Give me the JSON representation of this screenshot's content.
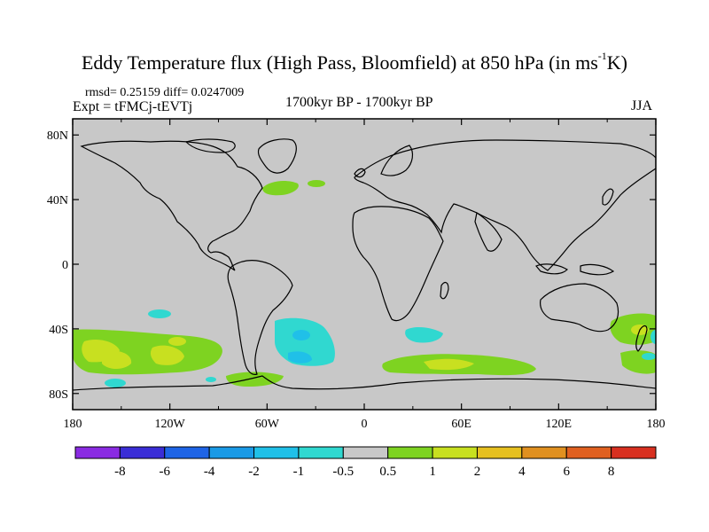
{
  "title": {
    "main": "Eddy Temperature flux (High Pass, Bloomfield) at 850 hPa (in ms",
    "sup": "-1",
    "end": "K)"
  },
  "stats": "rmsd= 0.25159 diff= 0.0247009",
  "experiment": "Expt = tFMCj-tEVTj",
  "period": "1700kyr BP - 1700kyr BP",
  "season": "JJA",
  "axes": {
    "lat_labels": [
      "80N",
      "40N",
      "0",
      "40S",
      "80S"
    ],
    "lat_values": [
      80,
      40,
      0,
      -40,
      -80
    ],
    "lon_labels": [
      "180",
      "120W",
      "60W",
      "0",
      "60E",
      "120E",
      "180"
    ],
    "lon_values": [
      -180,
      -120,
      -60,
      0,
      60,
      120,
      180
    ],
    "lat_range": [
      -90,
      90
    ],
    "lon_range": [
      -180,
      180
    ]
  },
  "colorbar": {
    "labels": [
      "-8",
      "-6",
      "-4",
      "-2",
      "-1",
      "-0.5",
      "0.5",
      "1",
      "2",
      "4",
      "6",
      "8"
    ],
    "colors": [
      "#8a2be2",
      "#3a2dd6",
      "#1e64e6",
      "#1a9ae6",
      "#20c0e8",
      "#30d8d0",
      "#c8c8c8",
      "#7ed321",
      "#c8e020",
      "#e6c020",
      "#e09020",
      "#e06020",
      "#d83020"
    ]
  },
  "colors": {
    "land_default": "#c8c8c8",
    "positive_low": "#7ed321",
    "positive_mid": "#c8e020",
    "negative_low": "#30d8d0",
    "negative_mid": "#20c0e8"
  }
}
